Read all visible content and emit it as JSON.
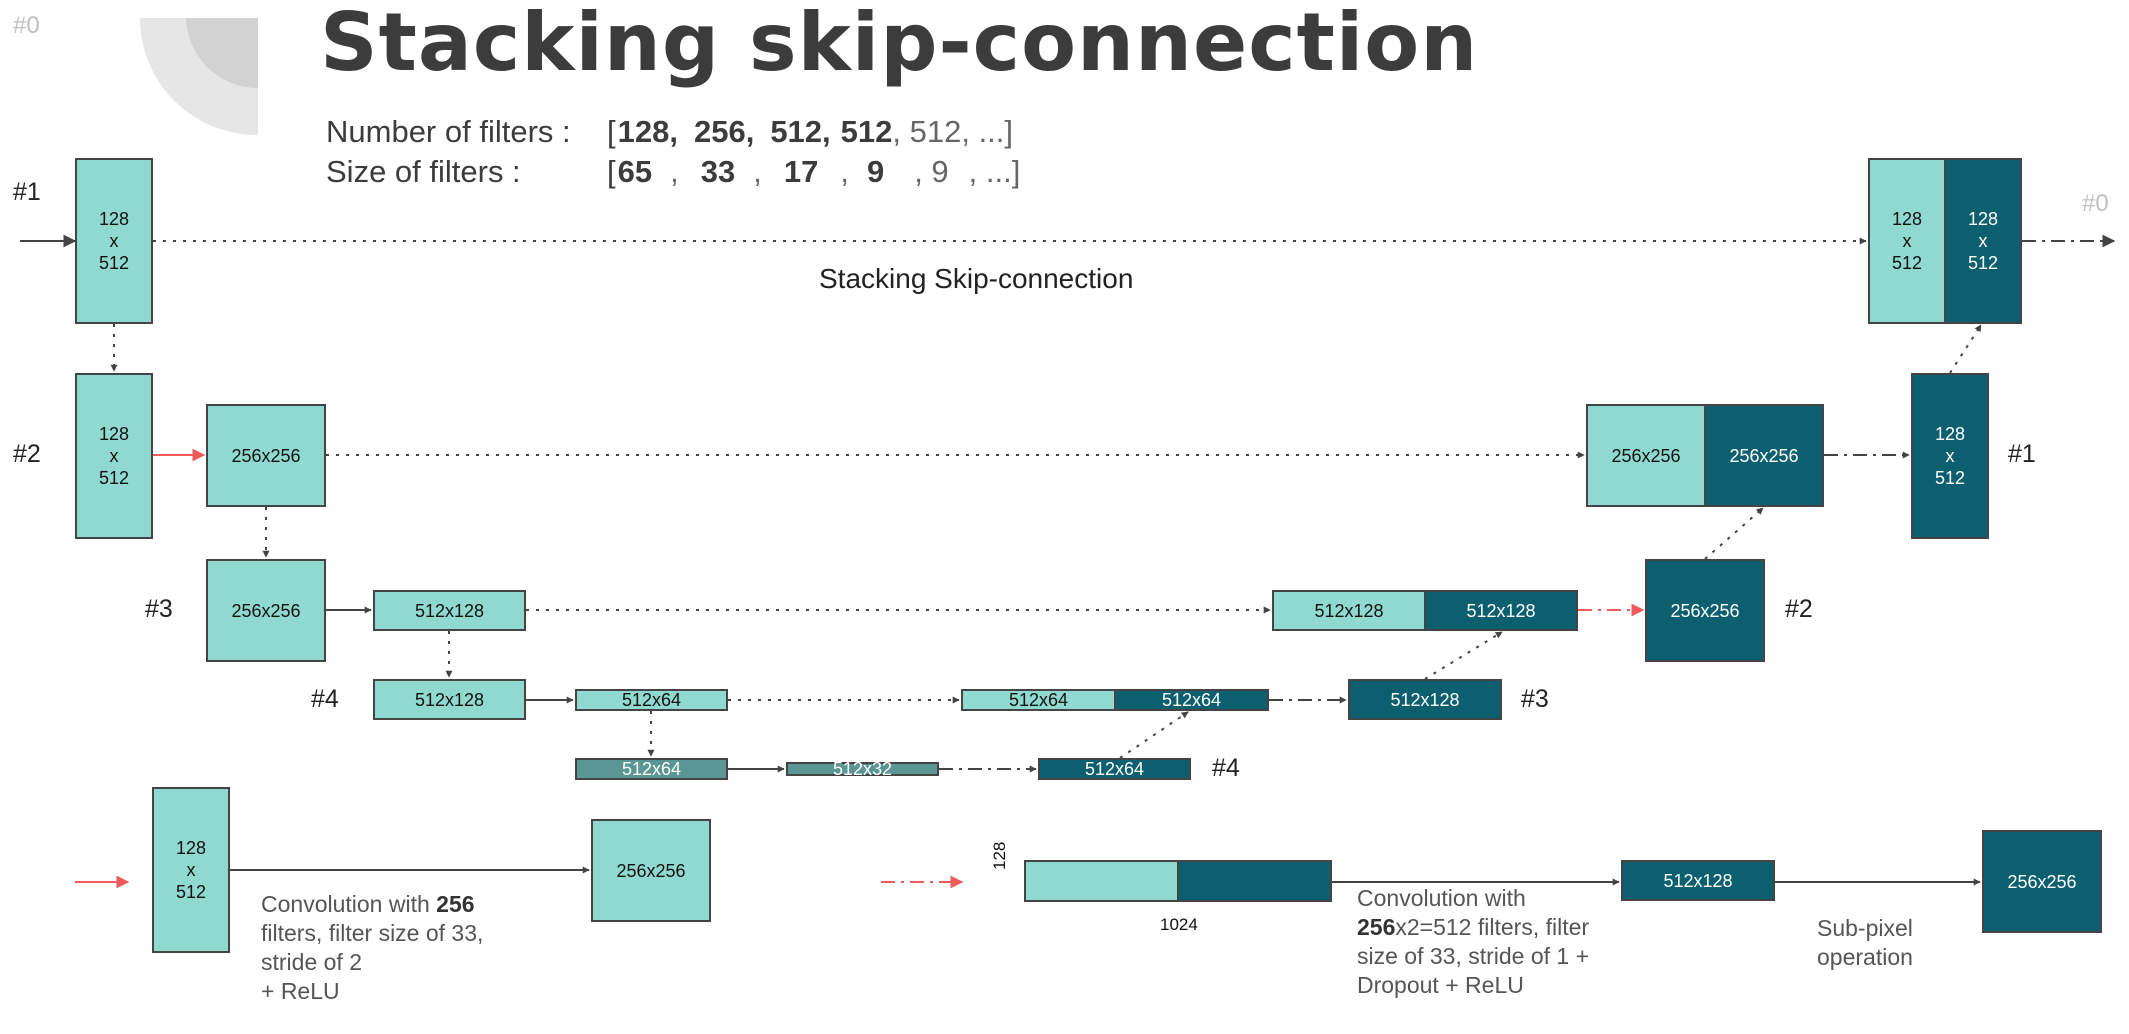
{
  "slide_number": "#0",
  "slide_number_right": "#0",
  "title": "Stacking skip-connection",
  "filters": {
    "count_label": "Number of filters :",
    "count_values": [
      {
        "text": "128,",
        "bold": true
      },
      {
        "text": "256,",
        "bold": true
      },
      {
        "text": "512,",
        "bold": true
      },
      {
        "text": "512",
        "bold": true
      },
      {
        "text": ", 512, ...]",
        "bold": false
      }
    ],
    "size_label": "Size of filters :",
    "size_values": [
      {
        "text": "65",
        "bold": true
      },
      {
        "text": ",",
        "bold": false
      },
      {
        "text": "33",
        "bold": true
      },
      {
        "text": ",",
        "bold": false
      },
      {
        "text": "17",
        "bold": true
      },
      {
        "text": ",",
        "bold": false
      },
      {
        "text": "9",
        "bold": true
      },
      {
        "text": ", 9",
        "bold": false
      },
      {
        "text": ", ...]",
        "bold": false
      }
    ]
  },
  "caption": "Stacking Skip-connection",
  "level_labels": {
    "down": [
      "#1",
      "#2",
      "#3",
      "#4"
    ],
    "up": [
      "#1",
      "#2",
      "#3",
      "#4"
    ]
  },
  "nodes": [
    {
      "id": "d1",
      "text": "128\nx\n512",
      "style": "light"
    },
    {
      "id": "d2",
      "text": "128\nx\n512",
      "style": "light"
    },
    {
      "id": "d2c",
      "text": "256x256",
      "style": "light"
    },
    {
      "id": "d3",
      "text": "256x256",
      "style": "light"
    },
    {
      "id": "d3c",
      "text": "512x128",
      "style": "light"
    },
    {
      "id": "d4",
      "text": "512x128",
      "style": "light"
    },
    {
      "id": "d4c",
      "text": "512x64",
      "style": "light"
    },
    {
      "id": "b1",
      "text": "512x64",
      "style": "grey"
    },
    {
      "id": "b2",
      "text": "512x32",
      "style": "grey"
    },
    {
      "id": "u4",
      "text": "512x64",
      "style": "dark"
    },
    {
      "id": "s4a",
      "text": "512x64",
      "style": "light"
    },
    {
      "id": "s4b",
      "text": "512x64",
      "style": "dark"
    },
    {
      "id": "u3",
      "text": "512x128",
      "style": "dark"
    },
    {
      "id": "s3a",
      "text": "512x128",
      "style": "light"
    },
    {
      "id": "s3b",
      "text": "512x128",
      "style": "dark"
    },
    {
      "id": "u2",
      "text": "256x256",
      "style": "dark"
    },
    {
      "id": "s2a",
      "text": "256x256",
      "style": "light"
    },
    {
      "id": "s2b",
      "text": "256x256",
      "style": "dark"
    },
    {
      "id": "u1",
      "text": "128\nx\n512",
      "style": "dark"
    },
    {
      "id": "s1a",
      "text": "128\nx\n512",
      "style": "light"
    },
    {
      "id": "s1b",
      "text": "128\nx\n512",
      "style": "dark"
    }
  ],
  "legend": {
    "down": {
      "input": "128\nx\n512",
      "output": "256x256",
      "desc_prefix": "Convolution with ",
      "desc_bold": "256",
      "desc_rest": " filters, filter size of 33, stride of 2\n+ ReLU"
    },
    "up": {
      "height_label": "128",
      "width_label": "1024",
      "mid": "512x128",
      "output": "256x256",
      "desc_bold": "256",
      "desc_rest": "x2=512 filters, filter size of 33, stride of 1 + Dropout + ReLU",
      "desc_prefix": "Convolution with",
      "subpixel": "Sub-pixel operation"
    }
  },
  "colors": {
    "light": "#8fd9d1",
    "dark": "#0c5f6e",
    "grey": "#5a9693",
    "red_arrow": "#f05a5a",
    "arrow": "#444444",
    "deco_outer": "#e6e6e6",
    "deco_inner": "#d2d2d2"
  }
}
